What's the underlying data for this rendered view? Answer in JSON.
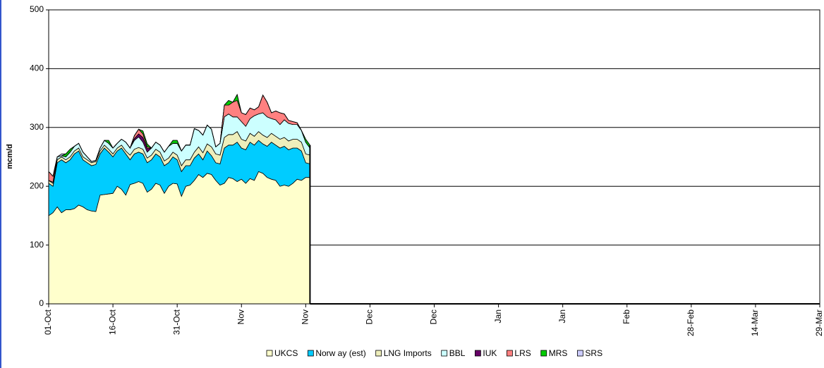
{
  "chart_data": {
    "type": "stacked_area",
    "y_label": "mcm/d",
    "xlim": [
      0,
      180
    ],
    "xticks": [
      {
        "value": 0,
        "label": "01-Oct"
      },
      {
        "value": 15,
        "label": "16-Oct"
      },
      {
        "value": 30,
        "label": "31-Oct"
      },
      {
        "value": 45,
        "label": "Nov"
      },
      {
        "value": 60,
        "label": "Nov"
      },
      {
        "value": 75,
        "label": "Dec"
      },
      {
        "value": 90,
        "label": "Dec"
      },
      {
        "value": 105,
        "label": "Jan"
      },
      {
        "value": 120,
        "label": "Jan"
      },
      {
        "value": 135,
        "label": "Feb"
      },
      {
        "value": 150,
        "label": "28-Feb"
      },
      {
        "value": 165,
        "label": "14-Mar"
      },
      {
        "value": 180,
        "label": "29-Mar"
      }
    ],
    "ylim": [
      0,
      500
    ],
    "yticks": [
      0,
      100,
      200,
      300,
      400,
      500
    ],
    "grid": true,
    "legend": "bottom",
    "series": [
      {
        "name": "UKCS",
        "color": "#ffffcc",
        "values": [
          150,
          155,
          165,
          155,
          160,
          160,
          162,
          168,
          165,
          160,
          158,
          157,
          185,
          186,
          187,
          188,
          200,
          195,
          185,
          203,
          205,
          208,
          205,
          190,
          195,
          205,
          202,
          188,
          200,
          205,
          204,
          183,
          200,
          202,
          210,
          220,
          215,
          222,
          220,
          210,
          202,
          205,
          215,
          213,
          208,
          212,
          205,
          213,
          210,
          225,
          222,
          215,
          212,
          210,
          200,
          202,
          200,
          205,
          212,
          210,
          215,
          215
        ]
      },
      {
        "name": "Norw ay (est)",
        "color": "#00ccff",
        "values": [
          55,
          45,
          75,
          90,
          80,
          85,
          93,
          92,
          80,
          80,
          77,
          80,
          70,
          79,
          71,
          62,
          60,
          70,
          70,
          42,
          50,
          50,
          50,
          50,
          50,
          50,
          48,
          47,
          40,
          45,
          41,
          42,
          35,
          33,
          38,
          35,
          30,
          38,
          32,
          30,
          36,
          60,
          55,
          57,
          67,
          53,
          57,
          62,
          60,
          53,
          50,
          53,
          63,
          60,
          65,
          66,
          62,
          60,
          53,
          50,
          25,
          23
        ]
      },
      {
        "name": "LNG Imports",
        "color": "#eeeebb",
        "values": [
          5,
          5,
          5,
          5,
          5,
          5,
          5,
          5,
          5,
          5,
          5,
          5,
          5,
          5,
          5,
          5,
          5,
          5,
          5,
          8,
          8,
          8,
          8,
          8,
          8,
          8,
          8,
          8,
          8,
          8,
          8,
          10,
          10,
          10,
          10,
          12,
          12,
          12,
          15,
          15,
          15,
          18,
          18,
          18,
          18,
          15,
          15,
          15,
          15,
          15,
          15,
          15,
          15,
          15,
          15,
          15,
          15,
          15,
          15,
          15,
          15,
          15
        ]
      },
      {
        "name": "BBL",
        "color": "#ccffff",
        "values": [
          0,
          2,
          5,
          2,
          5,
          8,
          8,
          8,
          8,
          5,
          2,
          2,
          5,
          8,
          10,
          10,
          8,
          10,
          15,
          12,
          15,
          18,
          12,
          10,
          12,
          12,
          12,
          15,
          20,
          15,
          20,
          25,
          25,
          25,
          40,
          28,
          30,
          32,
          30,
          12,
          20,
          35,
          35,
          30,
          25,
          30,
          25,
          25,
          35,
          30,
          38,
          35,
          25,
          28,
          25,
          30,
          30,
          25,
          25,
          20,
          20,
          12
        ]
      },
      {
        "name": "IUK",
        "color": "#660066",
        "values": [
          0,
          0,
          0,
          0,
          0,
          0,
          0,
          0,
          0,
          0,
          0,
          0,
          0,
          0,
          0,
          0,
          0,
          0,
          0,
          0,
          3,
          5,
          8,
          6,
          0,
          0,
          0,
          0,
          0,
          0,
          0,
          0,
          0,
          0,
          0,
          0,
          0,
          0,
          0,
          0,
          0,
          0,
          0,
          0,
          0,
          0,
          0,
          0,
          0,
          0,
          0,
          0,
          0,
          0,
          0,
          0,
          0,
          0,
          0,
          0,
          0,
          0
        ]
      },
      {
        "name": "LRS",
        "color": "#ff8080",
        "values": [
          15,
          10,
          0,
          0,
          0,
          0,
          0,
          0,
          0,
          0,
          0,
          0,
          0,
          0,
          0,
          0,
          0,
          0,
          0,
          0,
          5,
          8,
          6,
          3,
          0,
          0,
          0,
          0,
          0,
          0,
          0,
          0,
          0,
          0,
          0,
          0,
          0,
          0,
          0,
          0,
          0,
          20,
          15,
          25,
          28,
          15,
          20,
          18,
          10,
          12,
          30,
          25,
          10,
          15,
          20,
          10,
          5,
          5,
          3,
          0,
          0,
          0
        ]
      },
      {
        "name": "MRS",
        "color": "#00cc00",
        "values": [
          0,
          0,
          0,
          0,
          5,
          5,
          0,
          0,
          0,
          0,
          0,
          0,
          0,
          0,
          5,
          0,
          0,
          0,
          0,
          0,
          0,
          0,
          5,
          5,
          0,
          0,
          0,
          0,
          0,
          5,
          5,
          0,
          0,
          0,
          0,
          0,
          0,
          0,
          0,
          0,
          0,
          0,
          8,
          0,
          10,
          0,
          0,
          0,
          0,
          0,
          0,
          0,
          0,
          0,
          0,
          0,
          0,
          0,
          0,
          0,
          5,
          5
        ]
      },
      {
        "name": "SRS",
        "color": "#ccccff",
        "values": [
          0,
          0,
          0,
          3,
          0,
          0,
          0,
          0,
          0,
          0,
          0,
          0,
          0,
          0,
          0,
          0,
          0,
          0,
          0,
          0,
          0,
          0,
          0,
          0,
          0,
          0,
          0,
          0,
          0,
          0,
          0,
          0,
          0,
          0,
          0,
          0,
          0,
          0,
          0,
          0,
          0,
          0,
          0,
          0,
          0,
          0,
          0,
          0,
          0,
          0,
          0,
          0,
          0,
          0,
          0,
          0,
          0,
          0,
          0,
          0,
          0,
          0
        ]
      }
    ]
  }
}
